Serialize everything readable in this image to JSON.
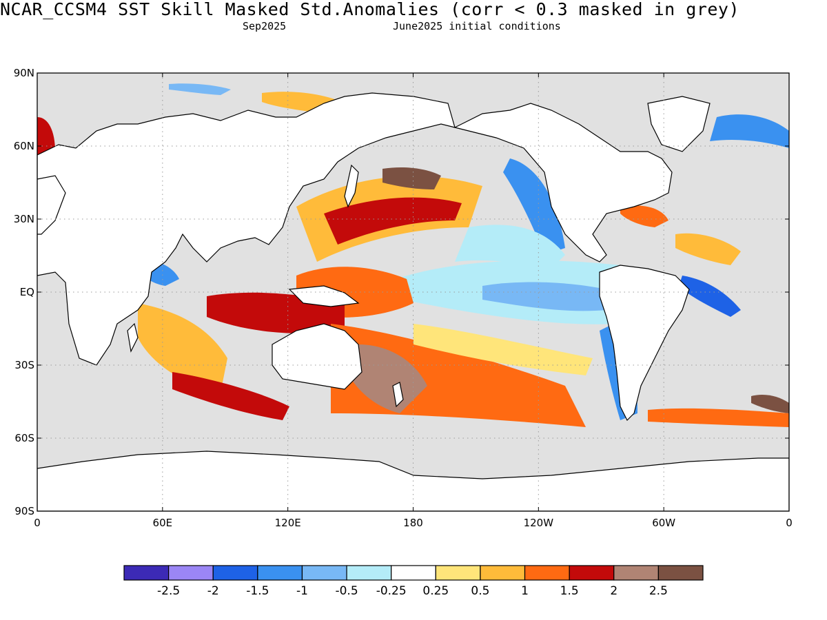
{
  "header": {
    "title": "NCAR_CCSM4  SST Skill Masked Std.Anomalies (corr < 0.3 masked in grey)",
    "valid_month": "Sep2025",
    "initial_conditions": "June2025 initial conditions"
  },
  "axes": {
    "y_ticks": [
      "90N",
      "60N",
      "30N",
      "EQ",
      "30S",
      "60S",
      "90S"
    ],
    "x_ticks": [
      "0",
      "60E",
      "120E",
      "180",
      "120W",
      "60W",
      "0"
    ]
  },
  "colors": {
    "masked": "#e1e1e1",
    "land": "#ffffff",
    "coast": "#000000",
    "grid": "#9a9a9a"
  },
  "colorbar": {
    "colors": [
      "#3c2ab6",
      "#9b86f5",
      "#1e62e6",
      "#3a91f0",
      "#78b8f5",
      "#b4ecf8",
      "#ffffff",
      "#ffe57a",
      "#ffbb3a",
      "#ff6a12",
      "#c30a0a",
      "#b08474",
      "#7b5142"
    ],
    "labels": [
      "-2.5",
      "-2",
      "-1.5",
      "-1",
      "-0.5",
      "-0.25",
      "0.25",
      "0.5",
      "1",
      "1.5",
      "2",
      "2.5"
    ]
  },
  "map_data": {
    "projection": "equirectangular",
    "lon_range": [
      0,
      360
    ],
    "lat_range": [
      -90,
      90
    ],
    "anomaly_regions": [
      {
        "name": "tropical-pacific-cold-tongue",
        "level": "-0.25"
      },
      {
        "name": "west-pacific-warm-pool",
        "level": "2"
      },
      {
        "name": "north-pacific-warm-band",
        "level": "1.5"
      },
      {
        "name": "south-pacific-warm-band",
        "level": "1.5"
      },
      {
        "name": "maritime-continent-warm",
        "level": "2"
      },
      {
        "name": "california-current-cool",
        "level": "-1"
      },
      {
        "name": "peru-chile-cool",
        "level": "-1"
      },
      {
        "name": "tropical-atlantic-cool",
        "level": "-1.5"
      },
      {
        "name": "southern-ocean-warm-band",
        "level": "1.5"
      }
    ]
  }
}
